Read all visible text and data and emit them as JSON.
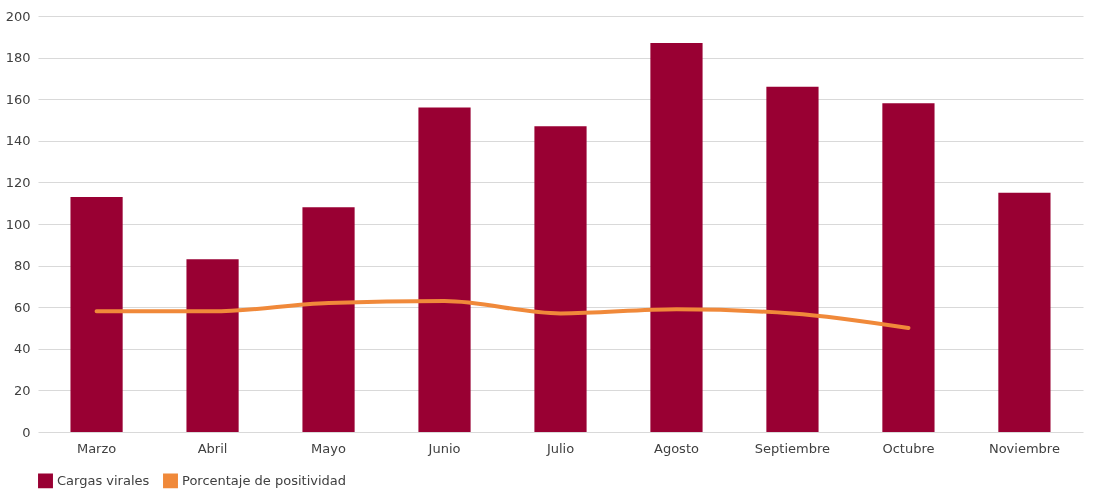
{
  "chart_data": {
    "type": "bar",
    "categories": [
      "Marzo",
      "Abril",
      "Mayo",
      "Junio",
      "Julio",
      "Agosto",
      "Septiembre",
      "Octubre",
      "Noviembre"
    ],
    "series": [
      {
        "name": "Cargas virales",
        "color": "#990033",
        "values": [
          113,
          83,
          108,
          156,
          147,
          187,
          166,
          158,
          115
        ]
      },
      {
        "name": "Porcentaje de positividad",
        "type": "line",
        "color": "#f0893a",
        "values": [
          58,
          58,
          62,
          63,
          57,
          59,
          57,
          50,
          null
        ]
      }
    ],
    "ylim": [
      0,
      200
    ],
    "yticks": [
      0,
      20,
      40,
      60,
      80,
      100,
      120,
      140,
      160,
      180,
      200
    ],
    "grid": "y",
    "legend": "bottom",
    "marker": "none",
    "line_style": "solid"
  }
}
